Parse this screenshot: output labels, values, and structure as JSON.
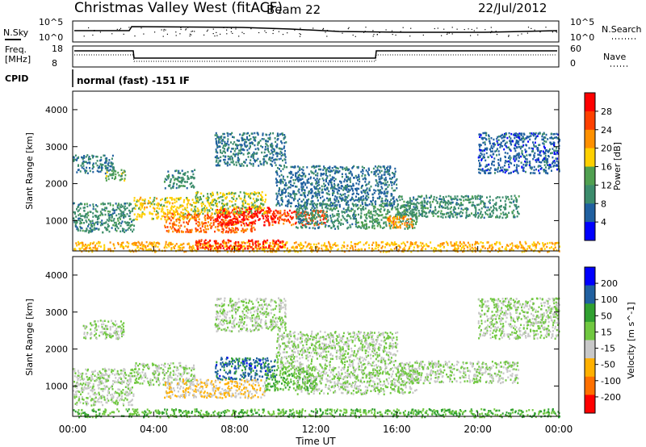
{
  "header": {
    "station": "Christmas Valley West (fitACF)",
    "beam": "Beam 22",
    "date": "22/Jul/2012"
  },
  "status_panels": {
    "nsky": {
      "label": "N.Sky",
      "ticks": [
        "10^5",
        "10^0"
      ],
      "right_label": "N.Search",
      "right_ticks": [
        "10^5",
        "10^0"
      ]
    },
    "freq": {
      "label_line1": "Freq.",
      "label_line2": "[MHz]",
      "ticks": [
        "18",
        "8"
      ],
      "right_label": "Nave",
      "right_ticks": [
        "60",
        "0"
      ]
    },
    "cpid": {
      "label": "CPID",
      "text": "normal (fast) -151 IF"
    }
  },
  "x_axis": {
    "label": "Time UT",
    "ticks": [
      "00:00",
      "04:00",
      "08:00",
      "12:00",
      "16:00",
      "20:00",
      "00:00"
    ]
  },
  "colors": {
    "power": [
      "#0000ff",
      "#2060a0",
      "#3c8c6c",
      "#50a050",
      "#ffd000",
      "#ff9000",
      "#ff4000",
      "#ff0000"
    ],
    "velocity": [
      "#ff0000",
      "#ff7000",
      "#ffb000",
      "#c8c8c8",
      "#70c840",
      "#30a030",
      "#2060a0",
      "#0000ff"
    ]
  },
  "chart_data": [
    {
      "type": "heatmap",
      "name": "power",
      "ylabel": "Slant Range [km]",
      "ylim": [
        180,
        4500
      ],
      "yticks": [
        "1000",
        "2000",
        "3000",
        "4000"
      ],
      "xlim": [
        0,
        24
      ],
      "colorbar": {
        "label": "Power [dB]",
        "ticks": [
          "28",
          "24",
          "20",
          "16",
          "12",
          "8",
          "4"
        ],
        "range": [
          0,
          32
        ]
      },
      "regions": [
        {
          "t0": 0.0,
          "t1": 2.0,
          "r0": 2300,
          "r1": 2800,
          "level": 8
        },
        {
          "t0": 1.6,
          "t1": 2.6,
          "r0": 2100,
          "r1": 2400,
          "level": 14
        },
        {
          "t0": 0.0,
          "t1": 3.0,
          "r0": 700,
          "r1": 1500,
          "level": 10
        },
        {
          "t0": 3.0,
          "t1": 6.0,
          "r0": 1050,
          "r1": 1650,
          "level": 18
        },
        {
          "t0": 4.5,
          "t1": 9.0,
          "r0": 700,
          "r1": 1250,
          "level": 24
        },
        {
          "t0": 7.0,
          "t1": 10.0,
          "r0": 900,
          "r1": 1400,
          "level": 30
        },
        {
          "t0": 9.5,
          "t1": 12.5,
          "r0": 900,
          "r1": 1300,
          "level": 26
        },
        {
          "t0": 6.0,
          "t1": 9.5,
          "r0": 1200,
          "r1": 1800,
          "level": 16
        },
        {
          "t0": 11.0,
          "t1": 14.0,
          "r0": 800,
          "r1": 1500,
          "level": 10
        },
        {
          "t0": 14.0,
          "t1": 17.0,
          "r0": 800,
          "r1": 1500,
          "level": 12
        },
        {
          "t0": 15.5,
          "t1": 16.8,
          "r0": 800,
          "r1": 1150,
          "level": 22
        },
        {
          "t0": 16.0,
          "t1": 22.0,
          "r0": 1100,
          "r1": 1700,
          "level": 10
        },
        {
          "t0": 7.0,
          "t1": 10.5,
          "r0": 2500,
          "r1": 3400,
          "level": 8
        },
        {
          "t0": 10.0,
          "t1": 16.0,
          "r0": 1400,
          "r1": 2500,
          "level": 7
        },
        {
          "t0": 4.5,
          "t1": 6.0,
          "r0": 1900,
          "r1": 2400,
          "level": 10
        },
        {
          "t0": 20.0,
          "t1": 24.0,
          "r0": 2300,
          "r1": 3400,
          "level": 6
        },
        {
          "t0": 0.0,
          "t1": 24.0,
          "r0": 180,
          "r1": 450,
          "level": 20
        },
        {
          "t0": 6.0,
          "t1": 10.5,
          "r0": 250,
          "r1": 500,
          "level": 28
        }
      ]
    },
    {
      "type": "heatmap",
      "name": "velocity",
      "ylabel": "Slant Range [km]",
      "ylim": [
        180,
        4500
      ],
      "yticks": [
        "1000",
        "2000",
        "3000",
        "4000"
      ],
      "xlim": [
        0,
        24
      ],
      "colorbar": {
        "label": "Velocity [m s^-1]",
        "ticks": [
          "200",
          "100",
          "50",
          "15",
          "-15",
          "-50",
          "-100",
          "-200"
        ],
        "range": [
          -250,
          250
        ]
      },
      "regions": [
        {
          "t0": 0.0,
          "t1": 3.0,
          "r0": 500,
          "r1": 1500,
          "level": 0
        },
        {
          "t0": 0.5,
          "t1": 2.5,
          "r0": 2300,
          "r1": 2800,
          "level": 0
        },
        {
          "t0": 3.0,
          "t1": 6.0,
          "r0": 1050,
          "r1": 1650,
          "level": 0
        },
        {
          "t0": 4.5,
          "t1": 9.5,
          "r0": 700,
          "r1": 1200,
          "level": -60
        },
        {
          "t0": 7.0,
          "t1": 10.0,
          "r0": 1200,
          "r1": 1800,
          "level": 150
        },
        {
          "t0": 9.5,
          "t1": 12.0,
          "r0": 900,
          "r1": 1500,
          "level": 60
        },
        {
          "t0": 11.0,
          "t1": 17.0,
          "r0": 800,
          "r1": 1500,
          "level": 0
        },
        {
          "t0": 7.0,
          "t1": 10.5,
          "r0": 2500,
          "r1": 3400,
          "level": 0
        },
        {
          "t0": 10.0,
          "t1": 16.0,
          "r0": 1500,
          "r1": 2500,
          "level": 0
        },
        {
          "t0": 16.0,
          "t1": 22.0,
          "r0": 1100,
          "r1": 1700,
          "level": 0
        },
        {
          "t0": 0.0,
          "t1": 24.0,
          "r0": 180,
          "r1": 400,
          "level": 60
        },
        {
          "t0": 20.0,
          "t1": 24.0,
          "r0": 2300,
          "r1": 3400,
          "level": 0
        }
      ]
    }
  ]
}
